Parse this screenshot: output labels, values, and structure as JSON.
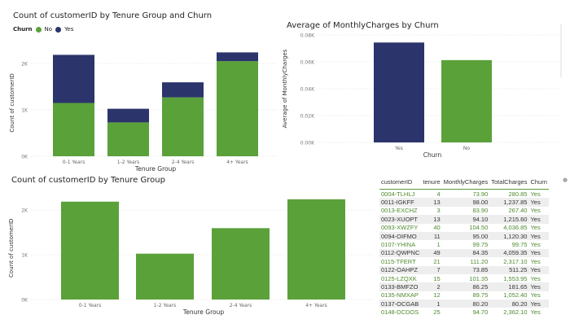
{
  "chart_data": [
    {
      "type": "bar",
      "stacked": true,
      "title": "Count of customerID by Tenure Group and Churn",
      "legend_title": "Churn",
      "legend_position": "top-left",
      "categories": [
        "0-1 Years",
        "1-2 Years",
        "2-4 Years",
        "4+ Years"
      ],
      "series": [
        {
          "name": "No",
          "color": "#5aa13a",
          "values": [
            1149,
            730,
            1270,
            2050
          ]
        },
        {
          "name": "Yes",
          "color": "#2b346b",
          "values": [
            1037,
            294,
            324,
            189
          ]
        }
      ],
      "xlabel": "Tenure Group",
      "ylabel": "Count of customerID",
      "yticks": [
        "0K",
        "1K",
        "2K"
      ],
      "ylim": [
        0,
        2300
      ],
      "grid": true
    },
    {
      "type": "bar",
      "title": "Average of MonthlyCharges by Churn",
      "categories": [
        "Yes",
        "No"
      ],
      "values": [
        74.4,
        61.3
      ],
      "colors": [
        "#2b346b",
        "#5aa13a"
      ],
      "xlabel": "Churn",
      "ylabel": "Average of MonthlyCharges",
      "yticks": [
        "0.00K",
        "0.02K",
        "0.04K",
        "0.06K",
        "0.08K"
      ],
      "ylim": [
        0,
        80
      ],
      "grid": true
    },
    {
      "type": "bar",
      "title": "Count of customerID by Tenure Group",
      "categories": [
        "0-1 Years",
        "1-2 Years",
        "2-4 Years",
        "4+ Years"
      ],
      "values": [
        2186,
        1024,
        1594,
        2239
      ],
      "color": "#5aa13a",
      "xlabel": "Tenure Group",
      "ylabel": "Count of customerID",
      "yticks": [
        "0K",
        "1K",
        "2K"
      ],
      "ylim": [
        0,
        2300
      ],
      "grid": true
    }
  ],
  "table": {
    "columns": [
      "customerID",
      "tenure",
      "MonthlyCharges",
      "TotalCharges",
      "Churn"
    ],
    "rows": [
      [
        "0004-TLHLJ",
        "4",
        "73.90",
        "280.85",
        "Yes"
      ],
      [
        "0011-IGKFF",
        "13",
        "98.00",
        "1,237.85",
        "Yes"
      ],
      [
        "0013-EXCHZ",
        "3",
        "83.90",
        "267.40",
        "Yes"
      ],
      [
        "0023-XUOPT",
        "13",
        "94.10",
        "1,215.60",
        "Yes"
      ],
      [
        "0093-XWZFY",
        "40",
        "104.50",
        "4,036.85",
        "Yes"
      ],
      [
        "0094-OIFMO",
        "11",
        "95.00",
        "1,120.30",
        "Yes"
      ],
      [
        "0107-YHINA",
        "1",
        "99.75",
        "99.75",
        "Yes"
      ],
      [
        "0112-QWPNC",
        "49",
        "84.35",
        "4,059.35",
        "Yes"
      ],
      [
        "0115-TFERT",
        "21",
        "111.20",
        "2,317.10",
        "Yes"
      ],
      [
        "0122-OAHPZ",
        "7",
        "73.85",
        "511.25",
        "Yes"
      ],
      [
        "0125-LZQXK",
        "15",
        "101.35",
        "1,553.95",
        "Yes"
      ],
      [
        "0133-BMFZO",
        "2",
        "86.25",
        "181.65",
        "Yes"
      ],
      [
        "0135-NMXAP",
        "12",
        "89.75",
        "1,052.40",
        "Yes"
      ],
      [
        "0137-OCGAB",
        "1",
        "80.20",
        "80.20",
        "Yes"
      ],
      [
        "0148-DCDOS",
        "25",
        "94.70",
        "2,362.10",
        "Yes"
      ]
    ]
  }
}
